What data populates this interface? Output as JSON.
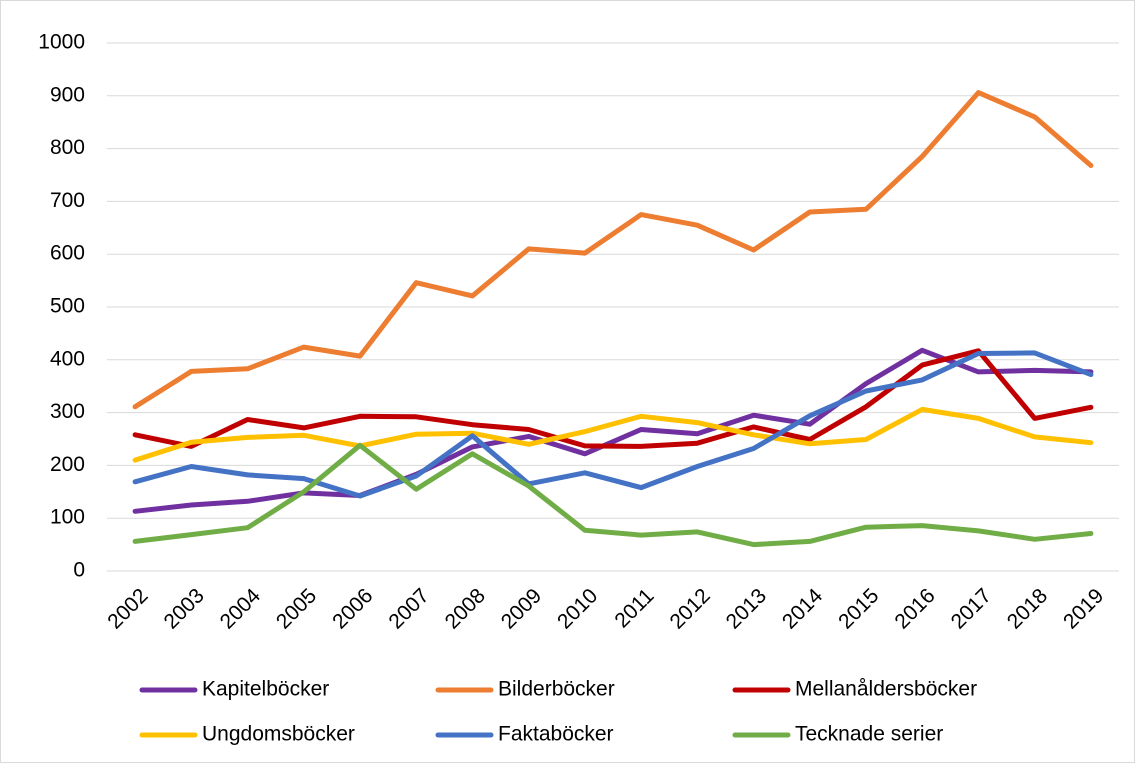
{
  "chart_data": {
    "type": "line",
    "categories": [
      "2002",
      "2003",
      "2004",
      "2005",
      "2006",
      "2007",
      "2008",
      "2009",
      "2010",
      "2011",
      "2012",
      "2013",
      "2014",
      "2015",
      "2016",
      "2017",
      "2018",
      "2019"
    ],
    "series": [
      {
        "name": "Kapitelböcker",
        "color": "#7030a0",
        "values": [
          113,
          125,
          132,
          148,
          143,
          183,
          235,
          255,
          222,
          268,
          260,
          295,
          278,
          355,
          418,
          377,
          380,
          377
        ]
      },
      {
        "name": "Bilderböcker",
        "color": "#ed7d31",
        "values": [
          311,
          378,
          383,
          424,
          407,
          546,
          521,
          610,
          602,
          675,
          655,
          608,
          680,
          685,
          785,
          906,
          860,
          768
        ]
      },
      {
        "name": "Mellanåldersböcker",
        "color": "#c00000",
        "values": [
          258,
          236,
          287,
          271,
          293,
          292,
          277,
          268,
          237,
          236,
          242,
          273,
          249,
          311,
          390,
          417,
          289,
          310
        ]
      },
      {
        "name": "Ungdomsböcker",
        "color": "#ffc000",
        "values": [
          210,
          244,
          253,
          257,
          237,
          259,
          261,
          240,
          264,
          293,
          281,
          258,
          241,
          249,
          306,
          289,
          254,
          243
        ]
      },
      {
        "name": "Faktaböcker",
        "color": "#4472c4",
        "values": [
          169,
          198,
          182,
          175,
          142,
          180,
          256,
          165,
          186,
          158,
          198,
          232,
          294,
          341,
          362,
          412,
          413,
          372
        ]
      },
      {
        "name": "Tecknade serier",
        "color": "#70ad47",
        "values": [
          56,
          69,
          82,
          150,
          238,
          155,
          222,
          161,
          77,
          68,
          74,
          50,
          56,
          83,
          86,
          76,
          60,
          71
        ]
      }
    ],
    "ylim": [
      0,
      1000
    ],
    "yticks": [
      0,
      100,
      200,
      300,
      400,
      500,
      600,
      700,
      800,
      900,
      1000
    ],
    "grid": true,
    "legend": "bottom"
  }
}
